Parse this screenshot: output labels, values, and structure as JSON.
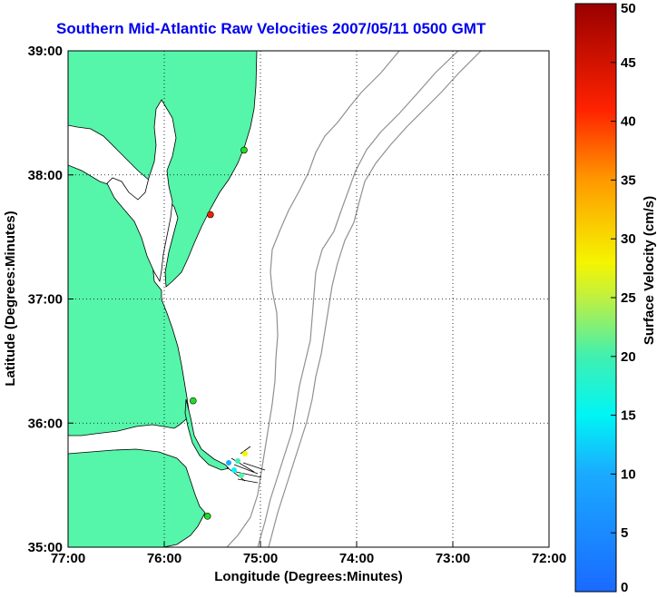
{
  "title": "Southern Mid-Atlantic Raw Velocities 2007/05/11 0500 GMT",
  "xlabel": "Longitude (Degrees:Minutes)",
  "ylabel": "Latitude (Degrees:Minutes)",
  "colorbar_label": "Surface Velocity (cm/s)",
  "colors": {
    "land": "#55f5aa",
    "coast_line": "#000000",
    "bathymetry": "#909090",
    "title": "#0000ee"
  },
  "chart_data": {
    "type": "map",
    "xlim": [
      -77,
      -72
    ],
    "ylim": [
      35,
      39
    ],
    "x_ticks": [
      "77:00",
      "76:00",
      "75:00",
      "74:00",
      "73:00",
      "72:00"
    ],
    "y_ticks": [
      "39:00",
      "38:00",
      "37:00",
      "36:00",
      "35:00"
    ],
    "grid": true,
    "colorbar": {
      "min": 0,
      "max": 50,
      "ticks": [
        "0",
        "5",
        "10",
        "15",
        "20",
        "25",
        "30",
        "35",
        "40",
        "45",
        "50"
      ]
    },
    "stations": [
      {
        "lon": -75.17,
        "lat": 38.2,
        "color": "#22dd22"
      },
      {
        "lon": -75.52,
        "lat": 37.68,
        "color": "#ee2200"
      },
      {
        "lon": -75.7,
        "lat": 36.18,
        "color": "#22dd22"
      },
      {
        "lon": -75.55,
        "lat": 35.25,
        "color": "#22dd22"
      }
    ]
  }
}
